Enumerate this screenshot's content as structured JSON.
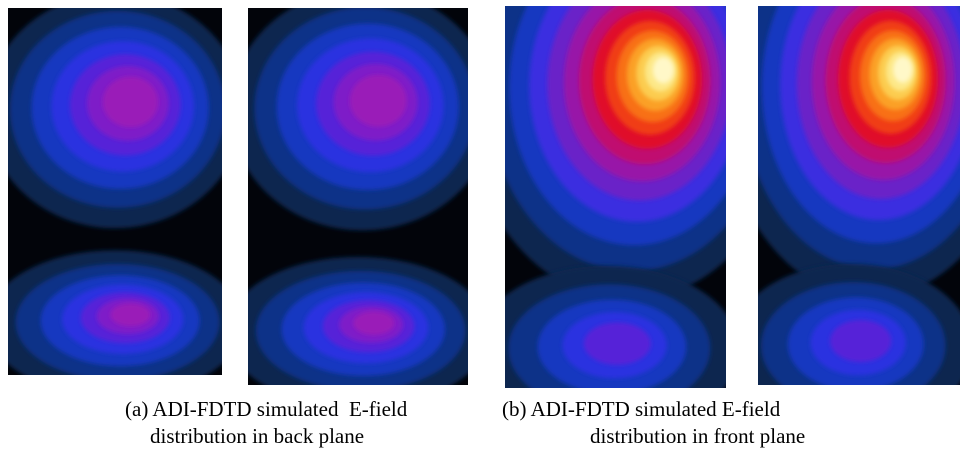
{
  "figure": {
    "panels": [
      {
        "caption_lines": [
          "(a) ADI-FDTD simulated  E-field",
          "distribution in back plane"
        ]
      },
      {
        "caption_lines": [
          "(b) ADI-FDTD simulated E-field",
          "distribution in front plane"
        ]
      }
    ]
  }
}
